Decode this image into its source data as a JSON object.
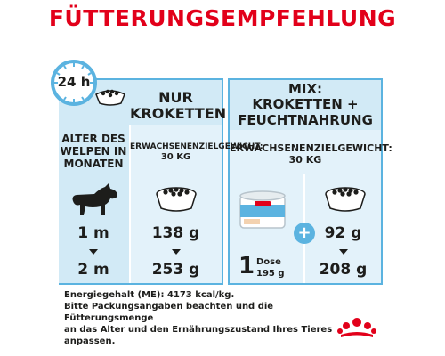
{
  "title": "FÜTTERUNGSEMPFEHLUNG",
  "clock": {
    "label": "24 h"
  },
  "col_age": {
    "header_line1": "ALTER DES",
    "header_line2": "WELPEN IN",
    "header_line3": "MONATEN",
    "values": [
      "1 m",
      "2 m"
    ]
  },
  "col_dry": {
    "header_line1": "NUR",
    "header_line2": "KROKETTEN",
    "weight_label": "ERWACHSENENZIELGEWICHT:",
    "weight_value": "30 KG",
    "values": [
      "138 g",
      "253 g"
    ]
  },
  "col_mix": {
    "header_line1": "MIX:",
    "header_line2": "KROKETTEN +",
    "header_line3": "FEUCHTNAHRUNG",
    "weight_label": "ERWACHSENENZIELGEWICHT:",
    "weight_value": "30 KG",
    "can_count": "1",
    "can_unit": "Dose",
    "can_weight": "195 g",
    "plus": "+",
    "values": [
      "92 g",
      "208 g"
    ]
  },
  "footer": {
    "line1": "Energiegehalt (ME): 4173 kcal/kg.",
    "line2": "Bitte Packungsangaben beachten und die",
    "line3": "Fütterungsmenge",
    "line4": "an das Alter und den Ernährungszustand Ihres Tieres",
    "line5": "anpassen."
  },
  "colors": {
    "title": "#e2001a",
    "panel_blue": "#d2eaf6",
    "accent_blue": "#5bb3e0",
    "dark": "#1d1d1b"
  }
}
